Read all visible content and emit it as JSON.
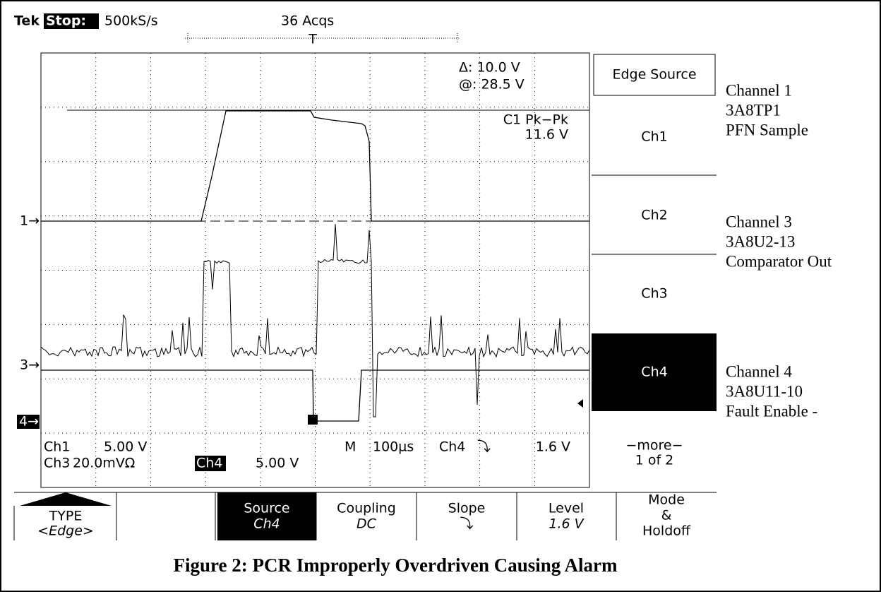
{
  "header": {
    "brand": "Tek",
    "state": "Stop:",
    "rate": "500kS/s",
    "acqs": "36 Acqs",
    "trigger_marker": "T"
  },
  "cursor": {
    "delta": "Δ: 10.0 V",
    "at": "@: 28.5 V"
  },
  "measurement": {
    "label": "C1 Pk−Pk",
    "value": "11.6 V"
  },
  "markers": {
    "ch1": "1→",
    "ch3": "3→",
    "ch4": "4→"
  },
  "readout": {
    "ch1": "Ch1",
    "ch1_scale": "5.00 V",
    "ch3": "Ch3",
    "ch3_scale": "20.0mVΩ",
    "ch4": "Ch4",
    "ch4_scale": "5.00 V",
    "m": "M",
    "timebase": "100µs",
    "trig_ch": "Ch4",
    "trig_slope": "⤵",
    "trig_level": "1.6 V"
  },
  "menu": {
    "title": "Edge Source",
    "items": [
      "Ch1",
      "Ch2",
      "Ch3",
      "Ch4"
    ],
    "more": "−more−",
    "page": "1 of 2"
  },
  "buttons": [
    {
      "label": "TYPE",
      "value": "<Edge>"
    },
    {
      "label": "Source",
      "value": "Ch4"
    },
    {
      "label": "Coupling",
      "value": "DC"
    },
    {
      "label": "Slope",
      "value": "⤵"
    },
    {
      "label": "Level",
      "value": "1.6 V"
    },
    {
      "label": "Mode",
      "value": "&",
      "extra": "Holdoff"
    }
  ],
  "annotations": [
    [
      "Channel 1",
      "3A8TP1",
      "PFN Sample"
    ],
    [
      "Channel 3",
      "3A8U2-13",
      "Comparator Out"
    ],
    [
      "Channel 4",
      "3A8U11-10",
      "Fault Enable -"
    ]
  ],
  "caption": "Figure 2:  PCR Improperly Overdriven Causing Alarm"
}
